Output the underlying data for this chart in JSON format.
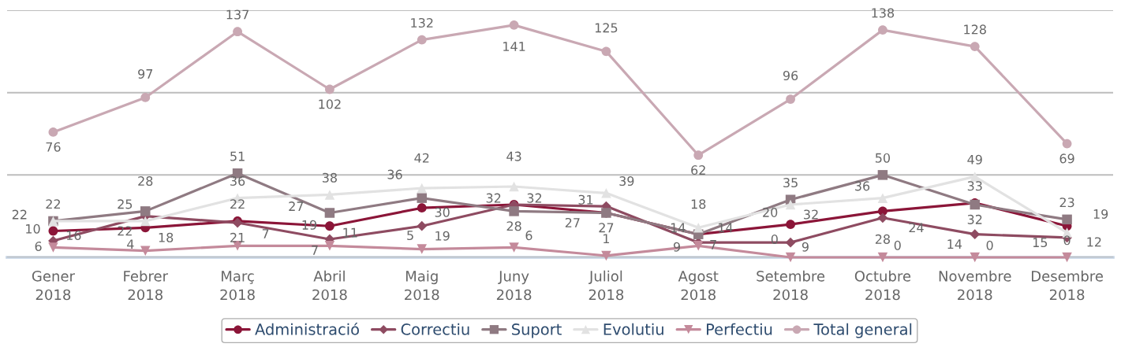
{
  "chart_data": {
    "type": "line",
    "categories": [
      "Gener\n2018",
      "Febrer\n2018",
      "Març\n2018",
      "Abril\n2018",
      "Maig\n2018",
      "Juny\n2018",
      "Juliol\n2018",
      "Agost\n2018",
      "Setembre\n2018",
      "Octubre\n2018",
      "Novembre\n2018",
      "Desembre\n2018"
    ],
    "series": [
      {
        "name": "Administració",
        "color": "#8b1538",
        "marker": "circle",
        "values": [
          16,
          18,
          22,
          19,
          30,
          32,
          27,
          14,
          20,
          28,
          33,
          19
        ]
      },
      {
        "name": "Correctiu",
        "color": "#8e4b61",
        "marker": "diamond",
        "values": [
          10,
          25,
          21,
          11,
          19,
          32,
          31,
          9,
          9,
          24,
          14,
          12
        ]
      },
      {
        "name": "Suport",
        "color": "#8f7a82",
        "marker": "square",
        "values": [
          22,
          28,
          51,
          27,
          36,
          28,
          27,
          14,
          35,
          50,
          32,
          23
        ]
      },
      {
        "name": "Evolutiu",
        "color": "#e2e2e2",
        "marker": "triangle",
        "values": [
          22,
          22,
          36,
          38,
          42,
          43,
          39,
          18,
          32,
          36,
          49,
          15
        ]
      },
      {
        "name": "Perfectiu",
        "color": "#c48a9b",
        "marker": "triangle_down",
        "values": [
          6,
          4,
          7,
          7,
          5,
          6,
          1,
          7,
          0,
          0,
          0,
          0
        ]
      },
      {
        "name": "Total general",
        "color": "#c9a8b3",
        "marker": "circle",
        "values": [
          76,
          97,
          137,
          102,
          132,
          141,
          125,
          62,
          96,
          138,
          128,
          69
        ]
      }
    ],
    "ylim": [
      0,
      150
    ],
    "yticks": [
      {
        "value": 0,
        "label": null
      },
      {
        "value": 50,
        "label": null
      },
      {
        "value": 100,
        "label": null
      },
      {
        "value": 150,
        "label": null
      }
    ],
    "grid": "y",
    "tick_labels": "x",
    "legend": "bottom",
    "data_labels": true
  }
}
